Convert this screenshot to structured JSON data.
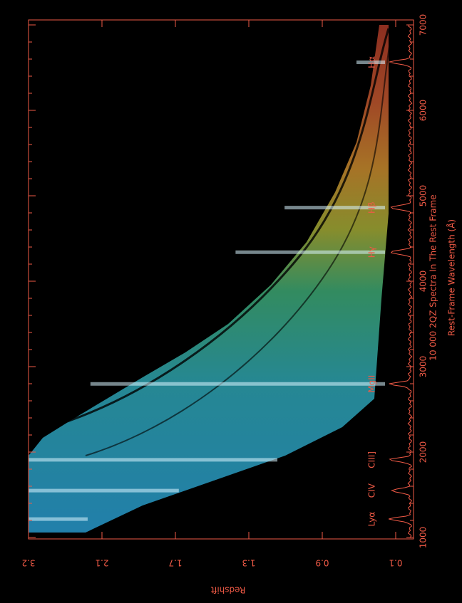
{
  "chart_data": {
    "type": "spectra-stack",
    "title": "10 000 2QZ Spectra In The Rest Frame",
    "x_label": "Rest-Frame Wavelength (Å)",
    "y_label": "Redshift",
    "xlim": [
      1000,
      7000
    ],
    "xticks": [
      1000,
      2000,
      3000,
      4000,
      5000,
      6000,
      7000
    ],
    "yticks": [
      0.1,
      0.9,
      1.3,
      1.7,
      2.1,
      3.2
    ],
    "color": "#f05a46",
    "annotations": [
      {
        "text": "Lyα",
        "x": 1216
      },
      {
        "text": "CIV",
        "x": 1549
      },
      {
        "text": "CIII]",
        "x": 1909
      },
      {
        "text": "MgII",
        "x": 2798
      },
      {
        "text": "Hγ",
        "x": 4340
      },
      {
        "text": "Hβ",
        "x": 4861
      },
      {
        "text": "Hα",
        "x": 6563
      }
    ]
  }
}
